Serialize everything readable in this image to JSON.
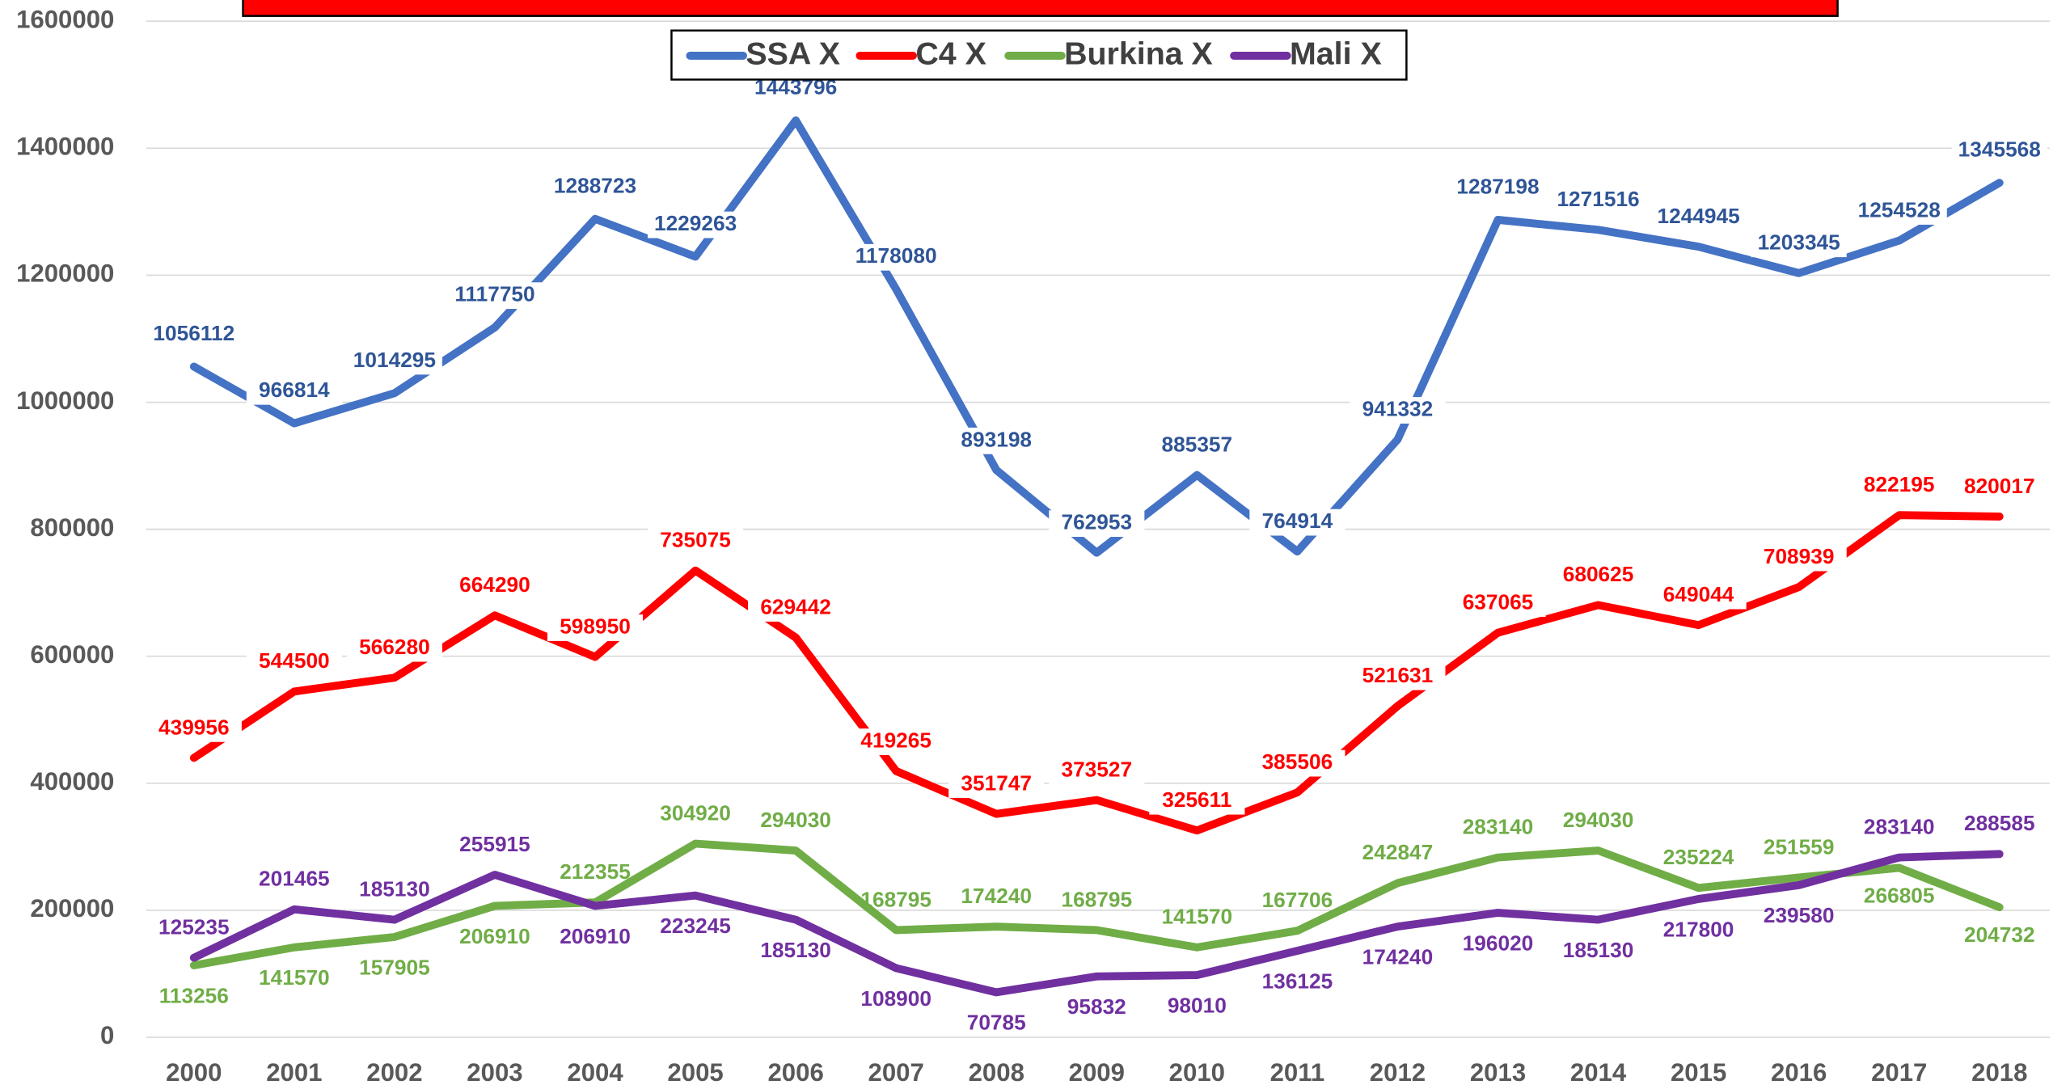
{
  "chart_data": {
    "type": "line",
    "categories": [
      "2000",
      "2001",
      "2002",
      "2003",
      "2004",
      "2005",
      "2006",
      "2007",
      "2008",
      "2009",
      "2010",
      "2011",
      "2012",
      "2013",
      "2014",
      "2015",
      "2016",
      "2017",
      "2018"
    ],
    "series": [
      {
        "name": "SSA X",
        "color": "#4472c4",
        "label_color": "#2f5597",
        "values": [
          1056112,
          966814,
          1014295,
          1117750,
          1288723,
          1229263,
          1443796,
          1178080,
          893198,
          762953,
          885357,
          764914,
          941332,
          1287198,
          1271516,
          1244945,
          1203345,
          1254528,
          1345568
        ]
      },
      {
        "name": "C4 X",
        "color": "#ff0000",
        "label_color": "#ff0000",
        "values": [
          439956,
          544500,
          566280,
          664290,
          598950,
          735075,
          629442,
          419265,
          351747,
          373527,
          325611,
          385506,
          521631,
          637065,
          680625,
          649044,
          708939,
          822195,
          820017
        ]
      },
      {
        "name": "Burkina X",
        "color": "#70ad47",
        "label_color": "#70ad47",
        "values": [
          113256,
          141570,
          157905,
          206910,
          212355,
          304920,
          294030,
          168795,
          174240,
          168795,
          141570,
          167706,
          242847,
          283140,
          294030,
          235224,
          251559,
          266805,
          204732
        ]
      },
      {
        "name": "Mali X",
        "color": "#7030a0",
        "label_color": "#7030a0",
        "values": [
          125235,
          201465,
          185130,
          255915,
          206910,
          223245,
          185130,
          108900,
          70785,
          95832,
          98010,
          136125,
          174240,
          196020,
          185130,
          217800,
          239580,
          283140,
          288585
        ]
      }
    ],
    "ylim": [
      0,
      1600000
    ],
    "yticks": [
      0,
      200000,
      400000,
      600000,
      800000,
      1000000,
      1200000,
      1400000,
      1600000
    ],
    "grid": true,
    "legend": "top"
  }
}
